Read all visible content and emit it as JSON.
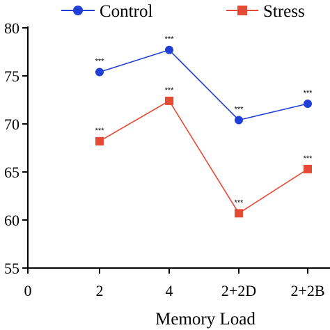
{
  "chart_data": {
    "type": "line",
    "categories": [
      "0",
      "2",
      "4",
      "2+2D",
      "2+2B"
    ],
    "series": [
      {
        "name": "Control",
        "color": "#1f3fd6",
        "marker": "circle",
        "x": [
          "2",
          "4",
          "2+2D",
          "2+2B"
        ],
        "values": [
          75.4,
          77.7,
          70.4,
          72.1
        ],
        "annotations": [
          "***",
          "***",
          "***",
          "***"
        ]
      },
      {
        "name": "Stress",
        "color": "#e64a35",
        "marker": "square",
        "x": [
          "2",
          "4",
          "2+2D",
          "2+2B"
        ],
        "values": [
          68.2,
          72.4,
          60.7,
          65.3
        ],
        "annotations": [
          "***",
          "***",
          "***",
          "***"
        ]
      }
    ],
    "y_ticks": [
      "55",
      "60",
      "65",
      "70",
      "75",
      "80"
    ],
    "y_tick_values": [
      55,
      60,
      65,
      70,
      75,
      80
    ],
    "xlabel": "Memory Load",
    "ylabel": "",
    "ylim": [
      55,
      80
    ],
    "legend_position": "top",
    "grid": false
  }
}
